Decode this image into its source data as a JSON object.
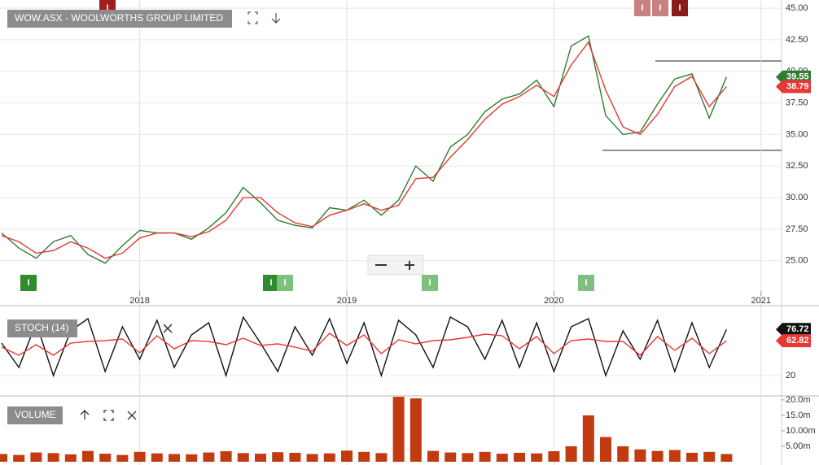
{
  "chart_data": [
    {
      "type": "line",
      "title": "WOW.ASX - WOOLWORTHS GROUP LIMITED",
      "categories": [
        null,
        null,
        null,
        null,
        null,
        null,
        null,
        null,
        "2018",
        null,
        null,
        null,
        null,
        null,
        null,
        null,
        null,
        null,
        null,
        null,
        "2019",
        null,
        null,
        null,
        null,
        null,
        null,
        null,
        null,
        null,
        null,
        null,
        "2020",
        null,
        null,
        null,
        null,
        null,
        null,
        null,
        null,
        null,
        null,
        null,
        "2021",
        null
      ],
      "series": [
        {
          "color": "#2e7d32",
          "values": [
            27.2,
            26.0,
            25.2,
            26.5,
            27.0,
            25.5,
            24.8,
            26.2,
            27.4,
            27.2,
            27.2,
            26.7,
            27.6,
            28.8,
            30.8,
            29.6,
            28.2,
            27.8,
            27.6,
            29.2,
            29.0,
            29.8,
            28.6,
            29.8,
            32.5,
            31.3,
            34.0,
            35.0,
            36.8,
            37.8,
            38.2,
            39.3,
            37.2,
            42.0,
            42.8,
            36.5,
            35.0,
            35.2,
            37.4,
            39.4,
            39.8,
            36.3,
            39.55,
            null,
            null,
            null
          ]
        },
        {
          "color": "#e53935",
          "values": [
            27.0,
            26.5,
            25.6,
            25.8,
            26.5,
            26.0,
            25.2,
            25.6,
            26.8,
            27.2,
            27.2,
            26.9,
            27.3,
            28.2,
            30.0,
            30.0,
            28.8,
            28.0,
            27.7,
            28.6,
            29.0,
            29.5,
            29.0,
            29.4,
            31.5,
            31.6,
            33.2,
            34.6,
            36.2,
            37.4,
            38.0,
            38.9,
            38.0,
            40.5,
            42.3,
            38.5,
            35.6,
            35.0,
            36.6,
            38.8,
            39.6,
            37.2,
            38.79,
            null,
            null,
            null
          ]
        }
      ],
      "ylim": [
        22.6,
        45.65
      ],
      "yticks": [
        {
          "value": 25,
          "label": "25.00"
        },
        {
          "value": 27.5,
          "label": "27.50"
        },
        {
          "value": 30,
          "label": "30.00"
        },
        {
          "value": 32.5,
          "label": "32.50"
        },
        {
          "value": 35,
          "label": "35.00"
        },
        {
          "value": 37.5,
          "label": "37.50"
        },
        {
          "value": 40,
          "label": "40.00"
        },
        {
          "value": 42.5,
          "label": "42.50"
        },
        {
          "value": 45,
          "label": "45.00"
        }
      ],
      "grid": true,
      "badge": "I"
    },
    {
      "type": "line",
      "title": "STOCH (14)",
      "series": [
        {
          "color": "#111111",
          "values": [
            60,
            30,
            85,
            20,
            75,
            90,
            25,
            80,
            40,
            88,
            30,
            70,
            85,
            20,
            92,
            60,
            25,
            80,
            45,
            90,
            35,
            85,
            20,
            88,
            70,
            30,
            92,
            80,
            40,
            88,
            30,
            85,
            25,
            80,
            90,
            20,
            75,
            40,
            88,
            25,
            85,
            30,
            76.72,
            null,
            null,
            null
          ]
        },
        {
          "color": "#e53935",
          "values": [
            55,
            45,
            58,
            45,
            60,
            62,
            63,
            65,
            48,
            69,
            53,
            63,
            62,
            58,
            66,
            57,
            59,
            55,
            50,
            72,
            57,
            70,
            47,
            64,
            59,
            63,
            64,
            67,
            71,
            69,
            53,
            68,
            47,
            63,
            65,
            62,
            62,
            45,
            68,
            51,
            66,
            47,
            62.82,
            null,
            null,
            null
          ]
        }
      ],
      "ylim": [
        -3,
        102
      ],
      "yticks": [
        20
      ],
      "grid": true
    },
    {
      "type": "bar",
      "title": "VOLUME",
      "color": "#c23a10",
      "values": [
        2.5,
        2.2,
        3,
        2.8,
        2.4,
        3.5,
        2.6,
        2.2,
        3.2,
        2.7,
        2.5,
        2.4,
        3,
        3.4,
        2.8,
        2.6,
        3.1,
        2.9,
        2.5,
        2.7,
        3.6,
        3.2,
        2.8,
        21,
        20.5,
        3.5,
        3,
        2.8,
        3.2,
        2.6,
        2.9,
        2.7,
        3.4,
        5,
        15,
        8,
        5,
        4,
        3.5,
        3.8,
        2.9,
        3.2,
        2.5,
        null,
        null,
        null
      ],
      "ylim": [
        0,
        20.5
      ],
      "yticks": [
        {
          "value": 5,
          "label": "5.00m"
        },
        {
          "value": 10,
          "label": "10.00m"
        },
        {
          "value": 15,
          "label": "15.0m"
        },
        {
          "value": 20,
          "label": "20.0m"
        }
      ],
      "grid": false
    }
  ]
}
